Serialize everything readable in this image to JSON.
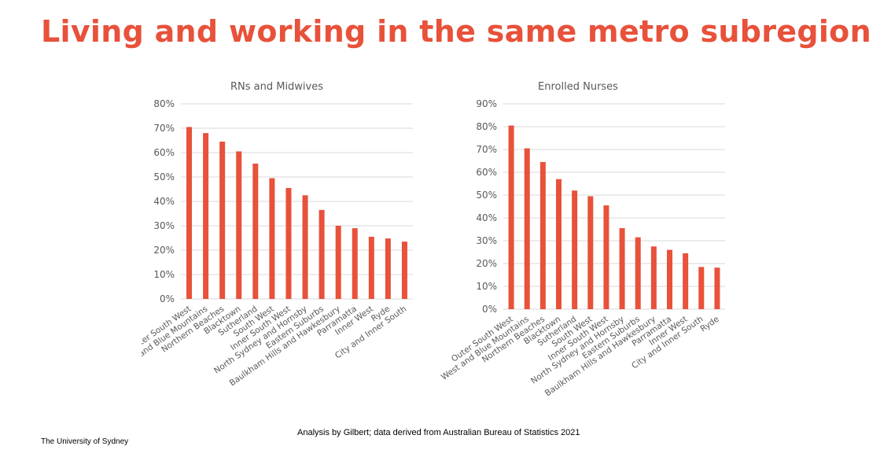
{
  "page": {
    "title": "Living and working in the same metro subregion",
    "caption": "Analysis by Gilbert; data derived from Australian Bureau of Statistics 2021",
    "footer": "The University of Sydney"
  },
  "colors": {
    "accent": "#e8513a",
    "bar": "#e8513a",
    "grid": "#d9d9d9",
    "text": "#595959"
  },
  "chart_data": [
    {
      "type": "bar",
      "title": "RNs and Midwives",
      "categories": [
        "Outer South West",
        "West and Blue Mountains",
        "Northern Beaches",
        "Blacktown",
        "Sutherland",
        "South West",
        "Inner South West",
        "North Sydney and Hornsby",
        "Eastern Suburbs",
        "Baulkham Hills and Hawkesbury",
        "Parramatta",
        "Inner West",
        "Ryde",
        "City and Inner South"
      ],
      "values": [
        70.5,
        68,
        64.5,
        60.5,
        55.5,
        49.5,
        45.5,
        42.5,
        36.5,
        30,
        29,
        25.5,
        24.8,
        23.5
      ],
      "ylim": [
        0,
        80
      ],
      "yticks": [
        "0%",
        "10%",
        "20%",
        "30%",
        "40%",
        "50%",
        "60%",
        "70%",
        "80%"
      ],
      "xlabel": "",
      "ylabel": "",
      "grid": true
    },
    {
      "type": "bar",
      "title": "Enrolled Nurses",
      "categories": [
        "Outer South West",
        "West and Blue Mountains",
        "Northern Beaches",
        "Blacktown",
        "Sutherland",
        "South West",
        "Inner South West",
        "North Sydney and Hornsby",
        "Eastern Suburbs",
        "Baulkham Hills and Hawkesbury",
        "Parramatta",
        "Inner West",
        "City and Inner South",
        "Ryde"
      ],
      "values": [
        80.5,
        70.5,
        64.5,
        57,
        52,
        49.5,
        45.5,
        35.5,
        31.5,
        27.5,
        26,
        24.5,
        18.5,
        18.2
      ],
      "ylim": [
        0,
        90
      ],
      "yticks": [
        "0%",
        "10%",
        "20%",
        "30%",
        "40%",
        "50%",
        "60%",
        "70%",
        "80%",
        "90%"
      ],
      "xlabel": "",
      "ylabel": "",
      "grid": true
    }
  ]
}
